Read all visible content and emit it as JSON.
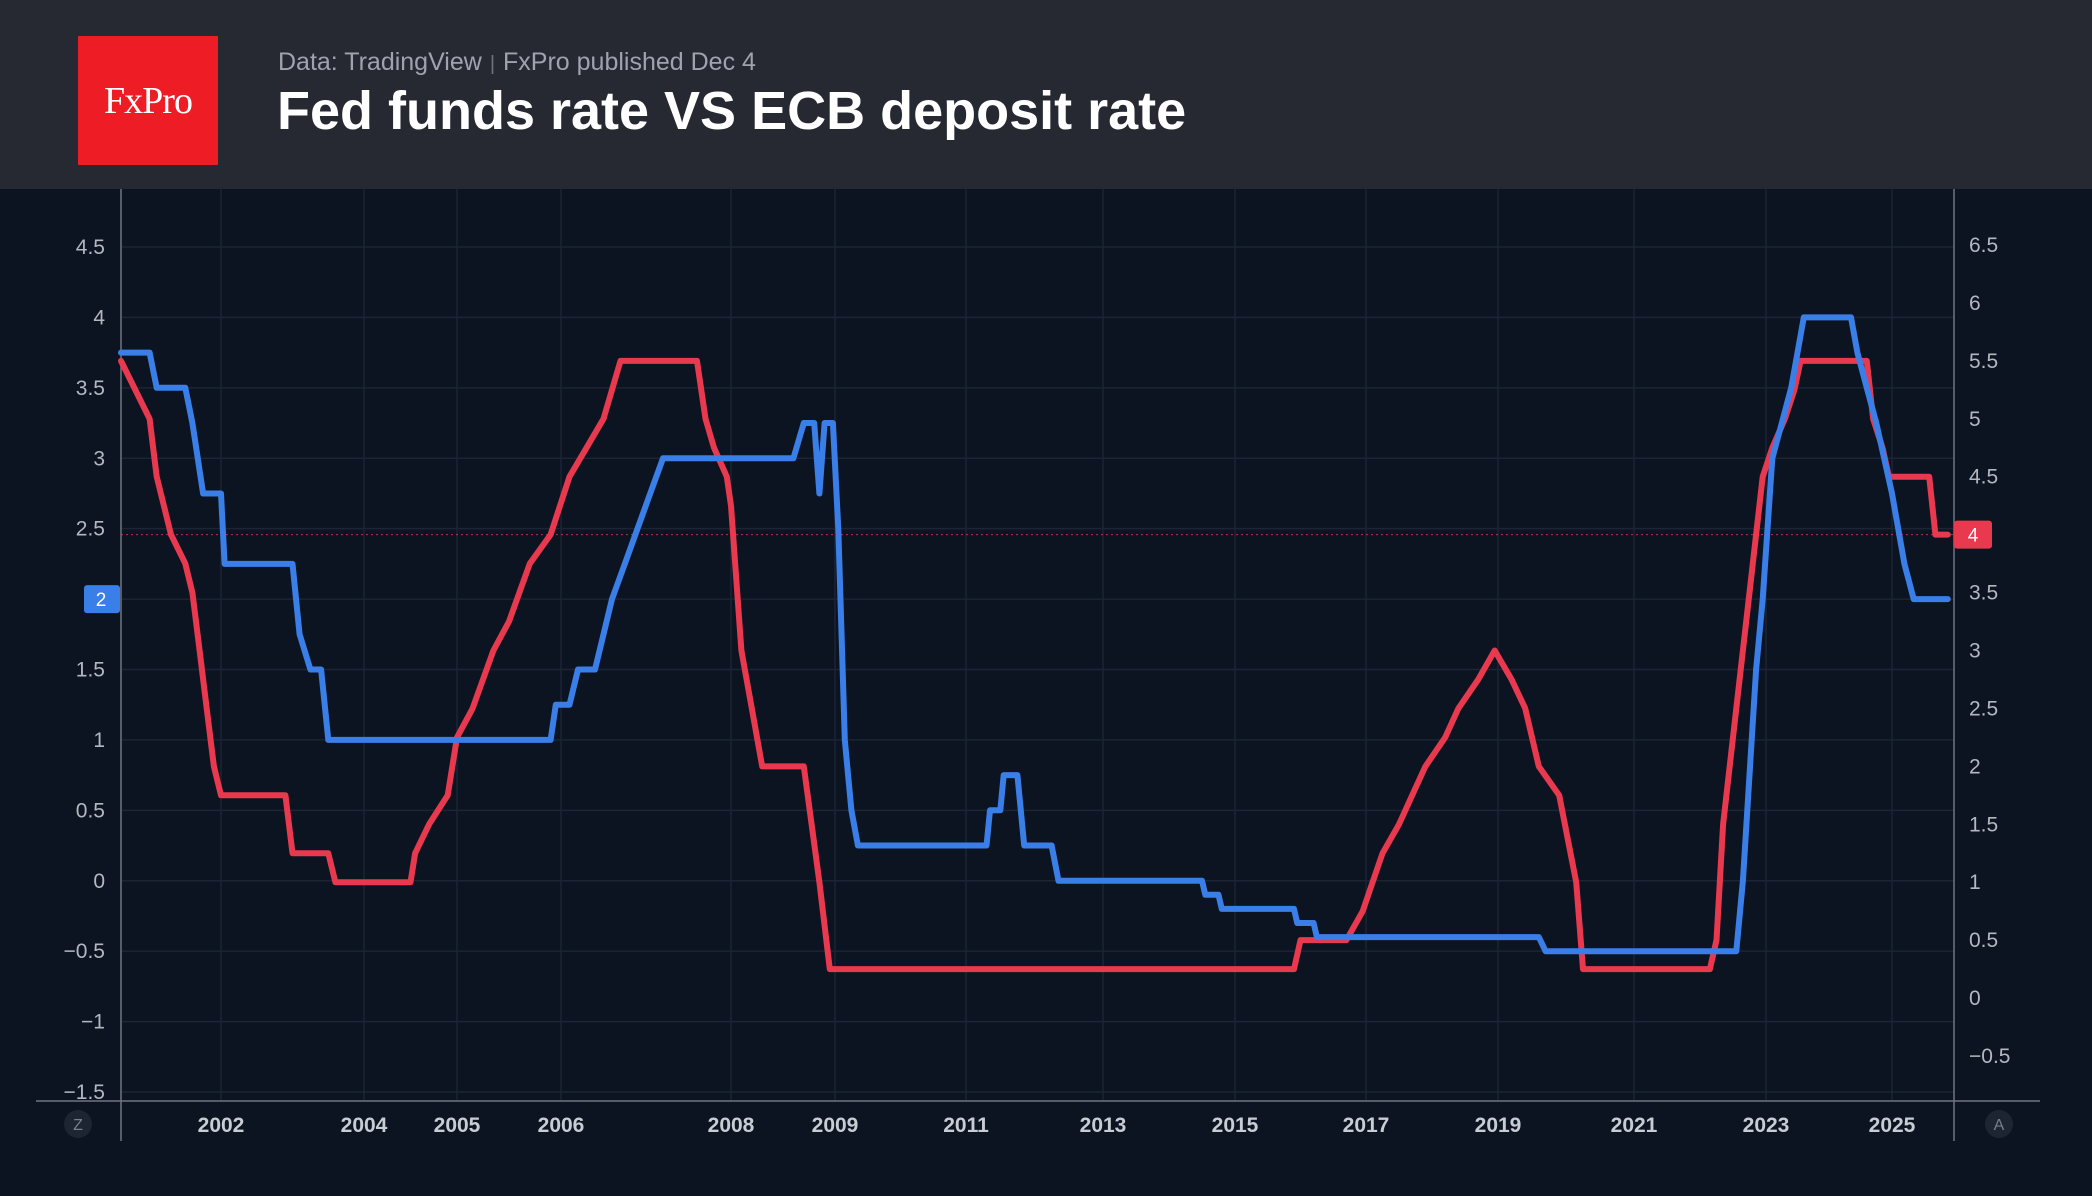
{
  "header": {
    "logo_text": "FxPro",
    "source_data": "Data: TradingView",
    "source_published": "FxPro published Dec 4",
    "title": "Fed funds rate VS ECB deposit rate"
  },
  "corner_left": "Z",
  "corner_right": "A",
  "colors": {
    "background": "#0c1422",
    "header": "#262832",
    "fed_line": "#e8394e",
    "ecb_line": "#3a7ee8",
    "logo": "#ee1c24"
  },
  "chart_data": {
    "type": "line",
    "x_ticks": [
      "2002",
      "2004",
      "2005",
      "2006",
      "2008",
      "2009",
      "2011",
      "2013",
      "2015",
      "2017",
      "2019",
      "2021",
      "2023",
      "2025"
    ],
    "left_axis": {
      "ticks": [
        "4.5",
        "4",
        "3.5",
        "3",
        "2.5",
        "2",
        "1.5",
        "1",
        "0.5",
        "0",
        "−0.5",
        "−1",
        "−1.5"
      ],
      "range": [
        -1.5,
        4.9
      ]
    },
    "right_axis": {
      "ticks": [
        "6.5",
        "6",
        "5.5",
        "5",
        "4.5",
        "4",
        "3.5",
        "3",
        "2.5",
        "2",
        "1.5",
        "1",
        "0.5",
        "0",
        "−0.5"
      ],
      "range": [
        -1,
        7
      ]
    },
    "last_value_labels": {
      "left": "2",
      "right": "4"
    },
    "series": [
      {
        "axis": "right",
        "color": "#e8394e",
        "points": [
          [
            2000.6,
            5.5
          ],
          [
            2001.0,
            5.0
          ],
          [
            2001.1,
            4.5
          ],
          [
            2001.3,
            4.0
          ],
          [
            2001.5,
            3.75
          ],
          [
            2001.6,
            3.5
          ],
          [
            2001.7,
            3.0
          ],
          [
            2001.8,
            2.5
          ],
          [
            2001.9,
            2.0
          ],
          [
            2002.0,
            1.75
          ],
          [
            2002.9,
            1.75
          ],
          [
            2003.0,
            1.25
          ],
          [
            2003.5,
            1.25
          ],
          [
            2003.6,
            1.0
          ],
          [
            2004.5,
            1.0
          ],
          [
            2004.55,
            1.25
          ],
          [
            2004.7,
            1.5
          ],
          [
            2004.9,
            1.75
          ],
          [
            2005.0,
            2.25
          ],
          [
            2005.15,
            2.5
          ],
          [
            2005.35,
            3.0
          ],
          [
            2005.5,
            3.25
          ],
          [
            2005.7,
            3.75
          ],
          [
            2005.9,
            4.0
          ],
          [
            2006.1,
            4.5
          ],
          [
            2006.3,
            4.75
          ],
          [
            2006.5,
            5.0
          ],
          [
            2006.6,
            5.25
          ],
          [
            2006.7,
            5.5
          ],
          [
            2007.6,
            5.5
          ],
          [
            2007.7,
            5.0
          ],
          [
            2007.8,
            4.75
          ],
          [
            2007.95,
            4.5
          ],
          [
            2008.0,
            4.25
          ],
          [
            2008.1,
            3.0
          ],
          [
            2008.2,
            2.5
          ],
          [
            2008.3,
            2.0
          ],
          [
            2008.7,
            2.0
          ],
          [
            2008.85,
            1.0
          ],
          [
            2008.95,
            0.25
          ],
          [
            2015.9,
            0.25
          ],
          [
            2016.0,
            0.5
          ],
          [
            2016.7,
            0.5
          ],
          [
            2016.95,
            0.75
          ],
          [
            2017.1,
            1.0
          ],
          [
            2017.25,
            1.25
          ],
          [
            2017.5,
            1.5
          ],
          [
            2017.7,
            1.75
          ],
          [
            2017.9,
            2.0
          ],
          [
            2018.2,
            2.25
          ],
          [
            2018.4,
            2.5
          ],
          [
            2018.7,
            2.75
          ],
          [
            2018.95,
            3.0
          ],
          [
            2019.2,
            2.75
          ],
          [
            2019.4,
            2.5
          ],
          [
            2019.6,
            2.0
          ],
          [
            2019.9,
            1.75
          ],
          [
            2020.15,
            1.0
          ],
          [
            2020.25,
            0.25
          ],
          [
            2022.15,
            0.25
          ],
          [
            2022.25,
            0.5
          ],
          [
            2022.35,
            1.5
          ],
          [
            2022.55,
            2.5
          ],
          [
            2022.7,
            3.25
          ],
          [
            2022.85,
            4.0
          ],
          [
            2022.95,
            4.5
          ],
          [
            2023.1,
            4.75
          ],
          [
            2023.3,
            5.0
          ],
          [
            2023.45,
            5.25
          ],
          [
            2023.55,
            5.5
          ],
          [
            2024.6,
            5.5
          ],
          [
            2024.7,
            5.0
          ],
          [
            2024.85,
            4.75
          ],
          [
            2024.95,
            4.5
          ],
          [
            2025.6,
            4.5
          ],
          [
            2025.7,
            4.0
          ],
          [
            2025.9,
            4.0
          ]
        ]
      },
      {
        "axis": "left",
        "color": "#3a7ee8",
        "points": [
          [
            2000.6,
            3.75
          ],
          [
            2001.0,
            3.75
          ],
          [
            2001.1,
            3.5
          ],
          [
            2001.5,
            3.5
          ],
          [
            2001.6,
            3.25
          ],
          [
            2001.75,
            2.75
          ],
          [
            2002.0,
            2.75
          ],
          [
            2002.05,
            2.25
          ],
          [
            2003.0,
            2.25
          ],
          [
            2003.1,
            1.75
          ],
          [
            2003.25,
            1.5
          ],
          [
            2003.4,
            1.5
          ],
          [
            2003.5,
            1.0
          ],
          [
            2005.9,
            1.0
          ],
          [
            2005.95,
            1.25
          ],
          [
            2006.1,
            1.25
          ],
          [
            2006.2,
            1.5
          ],
          [
            2006.4,
            1.5
          ],
          [
            2006.5,
            1.75
          ],
          [
            2006.6,
            2.0
          ],
          [
            2006.75,
            2.25
          ],
          [
            2006.9,
            2.5
          ],
          [
            2007.05,
            2.75
          ],
          [
            2007.2,
            3.0
          ],
          [
            2007.5,
            3.0
          ],
          [
            2008.0,
            3.0
          ],
          [
            2008.6,
            3.0
          ],
          [
            2008.7,
            3.25
          ],
          [
            2008.8,
            3.25
          ],
          [
            2008.85,
            2.75
          ],
          [
            2008.9,
            3.25
          ],
          [
            2008.98,
            3.25
          ],
          [
            2009.05,
            2.5
          ],
          [
            2009.15,
            1.0
          ],
          [
            2009.25,
            0.5
          ],
          [
            2009.35,
            0.25
          ],
          [
            2011.3,
            0.25
          ],
          [
            2011.35,
            0.5
          ],
          [
            2011.5,
            0.5
          ],
          [
            2011.55,
            0.75
          ],
          [
            2011.75,
            0.75
          ],
          [
            2011.85,
            0.25
          ],
          [
            2012.25,
            0.25
          ],
          [
            2012.35,
            0.0
          ],
          [
            2014.5,
            0.0
          ],
          [
            2014.55,
            -0.1
          ],
          [
            2014.75,
            -0.1
          ],
          [
            2014.8,
            -0.2
          ],
          [
            2015.9,
            -0.2
          ],
          [
            2015.95,
            -0.3
          ],
          [
            2016.2,
            -0.3
          ],
          [
            2016.25,
            -0.4
          ],
          [
            2019.6,
            -0.4
          ],
          [
            2019.7,
            -0.5
          ],
          [
            2022.55,
            -0.5
          ],
          [
            2022.65,
            0.0
          ],
          [
            2022.75,
            0.75
          ],
          [
            2022.85,
            1.5
          ],
          [
            2022.95,
            2.0
          ],
          [
            2023.1,
            3.0
          ],
          [
            2023.25,
            3.25
          ],
          [
            2023.4,
            3.5
          ],
          [
            2023.5,
            3.75
          ],
          [
            2023.6,
            4.0
          ],
          [
            2024.35,
            4.0
          ],
          [
            2024.45,
            3.75
          ],
          [
            2024.6,
            3.5
          ],
          [
            2024.75,
            3.25
          ],
          [
            2025.0,
            2.75
          ],
          [
            2025.2,
            2.25
          ],
          [
            2025.35,
            2.0
          ],
          [
            2025.9,
            2.0
          ]
        ]
      }
    ]
  }
}
